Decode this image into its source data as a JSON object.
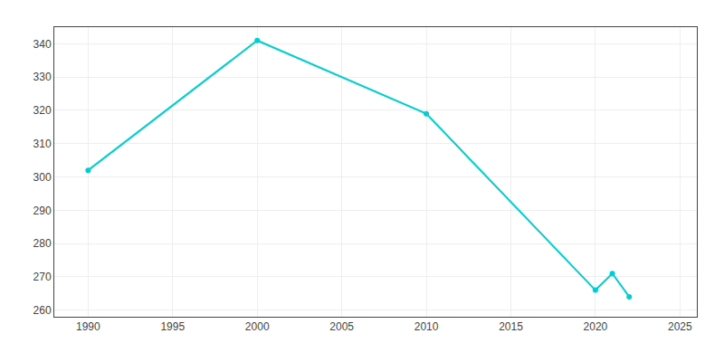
{
  "chart_data": {
    "type": "line",
    "x": [
      1990,
      2000,
      2010,
      2020,
      2021,
      2022
    ],
    "values": [
      302,
      341,
      319,
      266,
      271,
      264
    ],
    "color": "#00CED1",
    "marker": "circle",
    "xlim": [
      1988,
      2026
    ],
    "ylim": [
      258,
      345
    ],
    "xticks": [
      1990,
      1995,
      2000,
      2005,
      2010,
      2015,
      2020,
      2025
    ],
    "yticks": [
      260,
      270,
      280,
      290,
      300,
      310,
      320,
      330,
      340
    ],
    "grid": true
  }
}
